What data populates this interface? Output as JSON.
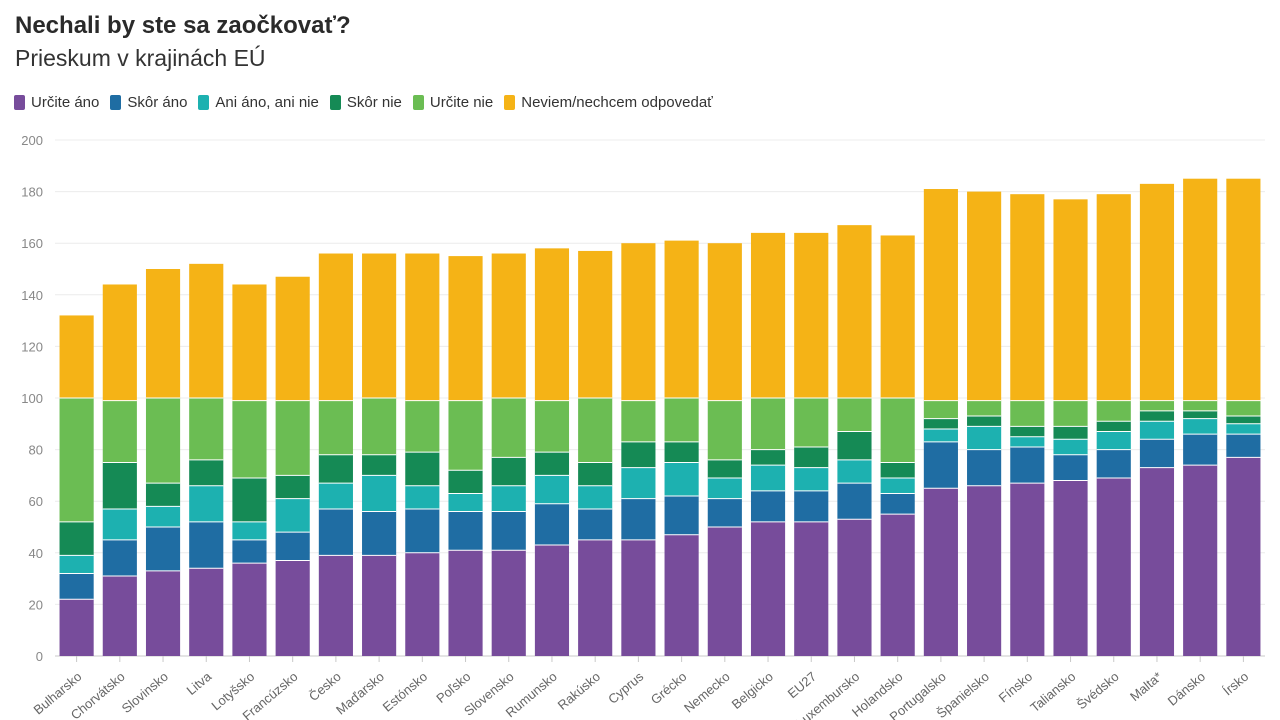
{
  "title": "Nechali by ste sa zaočkovať?",
  "subtitle": "Prieskum v krajinách EÚ",
  "chart_data": {
    "type": "bar",
    "stacked": true,
    "categories": [
      "Bulharsko",
      "Chorvátsko",
      "Slovinsko",
      "Litva",
      "Lotyšsko",
      "Francúzsko",
      "Česko",
      "Maďarsko",
      "Estónsko",
      "Poľsko",
      "Slovensko",
      "Rumunsko",
      "Rakúsko",
      "Cyprus",
      "Grécko",
      "Nemecko",
      "Belgicko",
      "EU27",
      "Luxembursko",
      "Holandsko",
      "Portugalsko",
      "Španielsko",
      "Fínsko",
      "Taliansko",
      "Švédsko",
      "Malta*",
      "Dánsko",
      "Írsko"
    ],
    "series": [
      {
        "name": "Určite áno",
        "color": "#774c9b",
        "values": [
          22,
          31,
          33,
          34,
          36,
          37,
          39,
          39,
          40,
          41,
          41,
          43,
          45,
          45,
          47,
          50,
          52,
          52,
          53,
          55,
          65,
          66,
          67,
          68,
          69,
          73,
          74,
          77
        ]
      },
      {
        "name": "Skôr áno",
        "color": "#1f6da3",
        "values": [
          10,
          14,
          17,
          18,
          9,
          11,
          18,
          17,
          17,
          15,
          15,
          16,
          12,
          16,
          15,
          11,
          12,
          12,
          14,
          8,
          18,
          14,
          14,
          10,
          11,
          11,
          12,
          9
        ]
      },
      {
        "name": "Ani áno, ani nie",
        "color": "#1db1b0",
        "values": [
          7,
          12,
          8,
          14,
          7,
          13,
          10,
          14,
          9,
          7,
          10,
          11,
          9,
          12,
          13,
          8,
          10,
          9,
          9,
          6,
          5,
          9,
          4,
          6,
          7,
          7,
          6,
          4
        ]
      },
      {
        "name": "Skôr nie",
        "color": "#158a55",
        "values": [
          13,
          18,
          9,
          10,
          17,
          9,
          11,
          8,
          13,
          9,
          11,
          9,
          9,
          10,
          8,
          7,
          6,
          8,
          11,
          6,
          4,
          4,
          4,
          5,
          4,
          4,
          3,
          3
        ]
      },
      {
        "name": "Určite nie",
        "color": "#6bbd53",
        "values": [
          48,
          24,
          33,
          24,
          30,
          29,
          21,
          22,
          20,
          27,
          23,
          20,
          25,
          16,
          17,
          23,
          20,
          19,
          13,
          25,
          7,
          6,
          10,
          10,
          8,
          4,
          4,
          6
        ]
      },
      {
        "name": "Neviem/nechcem odpovedať",
        "color": "#f5b316",
        "values": [
          32,
          45,
          50,
          52,
          45,
          48,
          57,
          56,
          57,
          56,
          56,
          59,
          57,
          61,
          61,
          61,
          64,
          64,
          67,
          63,
          82,
          81,
          80,
          78,
          80,
          84,
          86,
          86
        ]
      }
    ],
    "xlabel": "",
    "ylabel": "",
    "ylim": [
      0,
      200
    ],
    "yticks": [
      0,
      20,
      40,
      60,
      80,
      100,
      120,
      140,
      160,
      180,
      200
    ],
    "grid": true,
    "legend": "top-left"
  }
}
